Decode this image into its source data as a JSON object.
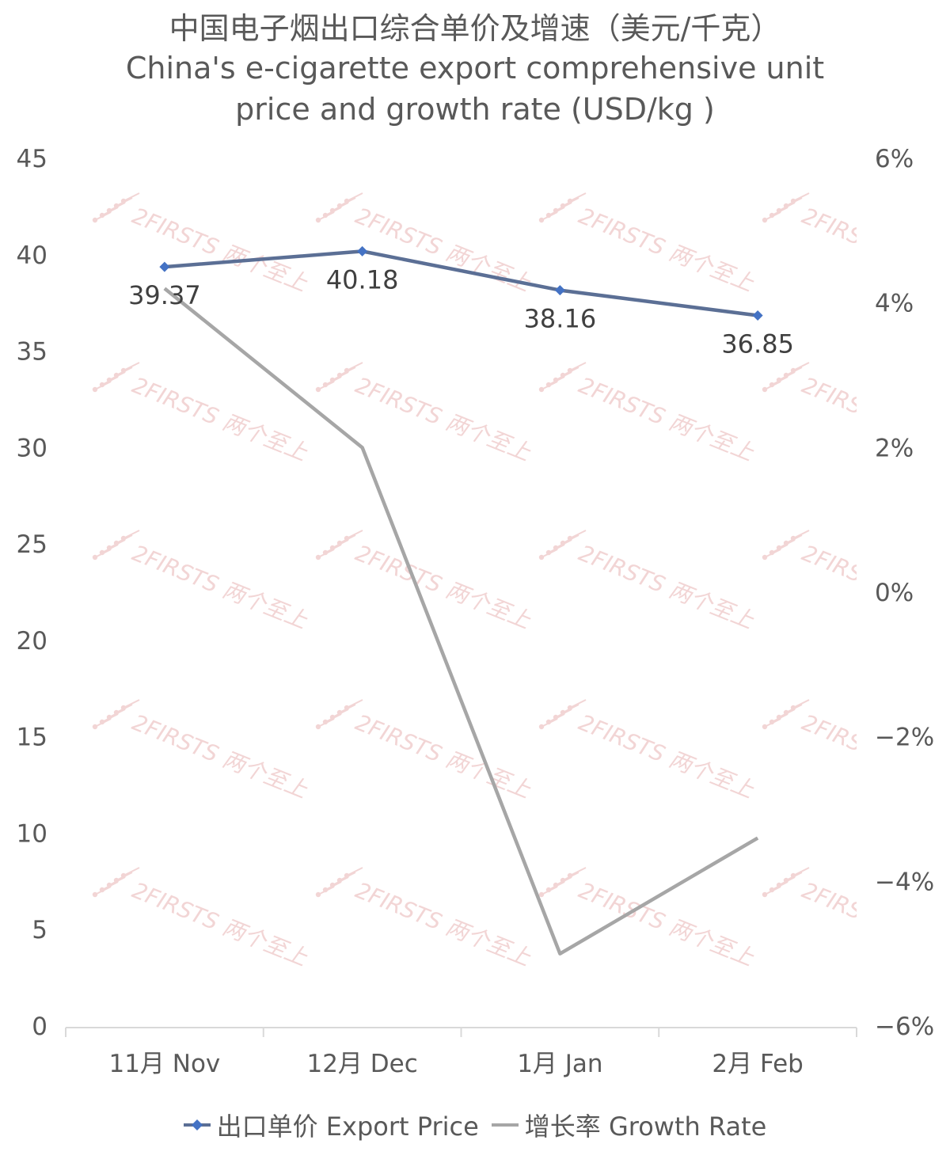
{
  "title_lines": [
    "中国电子烟出口综合单价及增速（美元/千克）",
    "China's e-cigarette export comprehensive unit",
    "price and growth rate (USD/kg )"
  ],
  "watermark": "2FIRSTS 两个至上",
  "colors": {
    "price": "#4472C4",
    "price_line": "#5B6F95",
    "growth": "#A6A6A6",
    "axis": "#D9D9D9",
    "watermark": "#E8B4B4"
  },
  "chart_data": {
    "type": "line",
    "categories": [
      "11月 Nov",
      "12月 Dec",
      "1月 Jan",
      "2月 Feb"
    ],
    "series": [
      {
        "name": "出口单价 Export Price",
        "axis": "left",
        "values": [
          39.37,
          40.18,
          38.16,
          36.85
        ],
        "data_labels": [
          "39.37",
          "40.18",
          "38.16",
          "36.85"
        ],
        "marker": "diamond"
      },
      {
        "name": "增长率 Growth Rate",
        "axis": "right",
        "values": [
          4.2,
          2.0,
          -5.0,
          -3.4
        ],
        "unit": "%"
      }
    ],
    "y_left": {
      "min": 0,
      "max": 45,
      "ticks": [
        0,
        5,
        10,
        15,
        20,
        25,
        30,
        35,
        40,
        45
      ],
      "tick_labels": [
        "0",
        "5",
        "10",
        "15",
        "20",
        "25",
        "30",
        "35",
        "40",
        "45"
      ]
    },
    "y_right": {
      "min": -6,
      "max": 6,
      "ticks": [
        -6,
        -4,
        -2,
        0,
        2,
        4,
        6
      ],
      "tick_labels": [
        "−6%",
        "−4%",
        "−2%",
        "0%",
        "2%",
        "4%",
        "6%"
      ]
    },
    "grid": false,
    "legend": "bottom"
  }
}
